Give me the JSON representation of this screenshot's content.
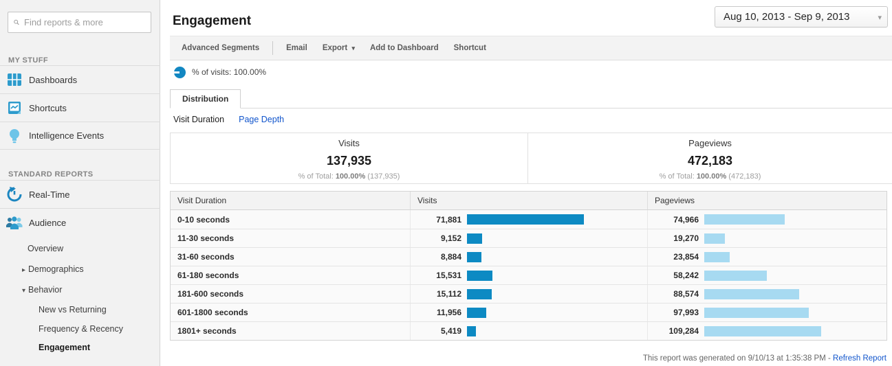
{
  "page": {
    "title": "Engagement",
    "date_range": "Aug 10, 2013 - Sep 9, 2013"
  },
  "icons": {
    "caret_down": "▾",
    "caret_right": "▸"
  },
  "sidebar": {
    "search_placeholder": "Find reports & more",
    "my_stuff_label": "MY STUFF",
    "my_stuff_items": [
      {
        "label": "Dashboards"
      },
      {
        "label": "Shortcuts"
      },
      {
        "label": "Intelligence Events"
      }
    ],
    "standard_reports_label": "STANDARD REPORTS",
    "realtime_label": "Real-Time",
    "audience_label": "Audience",
    "overview_label": "Overview",
    "demographics_label": "Demographics",
    "behavior_label": "Behavior",
    "behavior_children": [
      {
        "label": "New vs Returning"
      },
      {
        "label": "Frequency & Recency"
      },
      {
        "label": "Engagement"
      }
    ]
  },
  "toolbar": {
    "advanced_segments": "Advanced Segments",
    "email": "Email",
    "export": "Export",
    "add_to_dashboard": "Add to Dashboard",
    "shortcut": "Shortcut"
  },
  "segment": {
    "label": "% of visits: 100.00%"
  },
  "tabs": {
    "distribution": "Distribution"
  },
  "subnav": {
    "visit_duration": "Visit Duration",
    "page_depth": "Page Depth"
  },
  "summary": {
    "visits": {
      "label": "Visits",
      "value": "137,935",
      "pct_prefix": "% of Total: ",
      "pct_value": "100.00%",
      "pct_paren": " (137,935)"
    },
    "pageviews": {
      "label": "Pageviews",
      "value": "472,183",
      "pct_prefix": "% of Total: ",
      "pct_value": "100.00%",
      "pct_paren": " (472,183)"
    }
  },
  "table": {
    "headers": [
      "Visit Duration",
      "Visits",
      "Pageviews"
    ],
    "visits_max": 71881,
    "pageviews_max": 109284,
    "rows": [
      {
        "label": "0-10 seconds",
        "visits": "71,881",
        "visits_n": 71881,
        "pageviews": "74,966",
        "pageviews_n": 74966
      },
      {
        "label": "11-30 seconds",
        "visits": "9,152",
        "visits_n": 9152,
        "pageviews": "19,270",
        "pageviews_n": 19270
      },
      {
        "label": "31-60 seconds",
        "visits": "8,884",
        "visits_n": 8884,
        "pageviews": "23,854",
        "pageviews_n": 23854
      },
      {
        "label": "61-180 seconds",
        "visits": "15,531",
        "visits_n": 15531,
        "pageviews": "58,242",
        "pageviews_n": 58242
      },
      {
        "label": "181-600 seconds",
        "visits": "15,112",
        "visits_n": 15112,
        "pageviews": "88,574",
        "pageviews_n": 88574
      },
      {
        "label": "601-1800 seconds",
        "visits": "11,956",
        "visits_n": 11956,
        "pageviews": "97,993",
        "pageviews_n": 97993
      },
      {
        "label": "1801+ seconds",
        "visits": "5,419",
        "visits_n": 5419,
        "pageviews": "109,284",
        "pageviews_n": 109284
      }
    ]
  },
  "footer": {
    "text": "This report was generated on 9/10/13 at 1:35:38 PM - ",
    "link": "Refresh Report"
  },
  "colors": {
    "visits_bar": "#0d8ac3",
    "pageviews_bar": "#a7daf1",
    "accent_blue": "#1155cc"
  }
}
